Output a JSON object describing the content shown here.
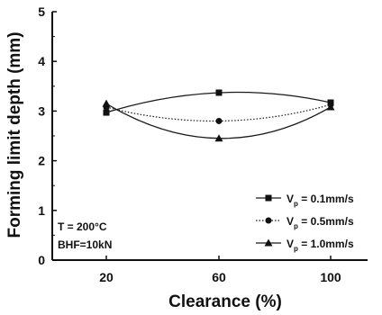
{
  "chart_data": {
    "type": "line",
    "title": "",
    "xlabel": "Clearance (%)",
    "ylabel": "Forming limit depth (mm)",
    "categories": [
      20,
      60,
      100
    ],
    "ylim": [
      0,
      5
    ],
    "yticks": [
      "0",
      "1",
      "2",
      "3",
      "4",
      "5"
    ],
    "grid": false,
    "legend_position": "bottom-right",
    "annotations": [
      "T = 200°C",
      "BHF=10kN"
    ],
    "series": [
      {
        "name": "V",
        "name_subscript": "p",
        "name_suffix": " = 0.1mm/s",
        "marker": "square",
        "line_style": "solid",
        "values": [
          2.97,
          3.37,
          3.17
        ]
      },
      {
        "name": "V",
        "name_subscript": "p",
        "name_suffix": " = 0.5mm/s",
        "marker": "circle",
        "line_style": "dotted",
        "values": [
          3.08,
          2.8,
          3.13
        ]
      },
      {
        "name": "V",
        "name_subscript": "p",
        "name_suffix": " = 1.0mm/s",
        "marker": "triangle",
        "line_style": "solid",
        "values": [
          3.15,
          2.45,
          3.08
        ]
      }
    ],
    "colors": {
      "line": "#1a1a1a",
      "marker": "#111111"
    }
  }
}
